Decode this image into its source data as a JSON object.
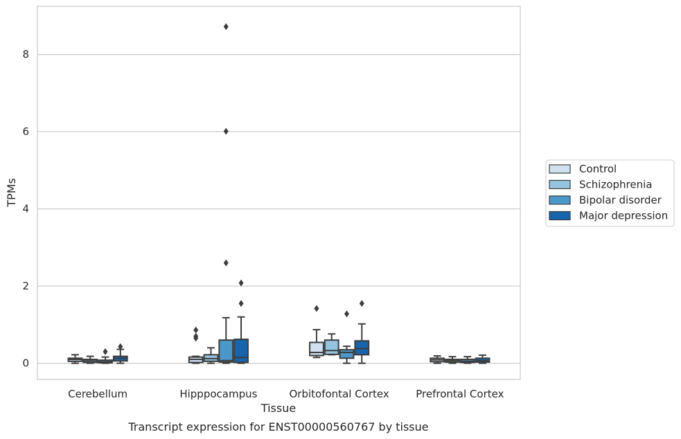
{
  "caption": "Transcript expression for ENST00000560767 by tissue",
  "chart_data": {
    "type": "box",
    "xlabel": "Tissue",
    "ylabel": "TPMs",
    "ylim": [
      -0.42,
      9.25
    ],
    "yticks": [
      0,
      2,
      4,
      6,
      8
    ],
    "grid": "horizontal",
    "legend_position": "right",
    "categories": [
      "Cerebellum",
      "Hipppocampus",
      "Orbitofontal Cortex",
      "Prefrontal Cortex"
    ],
    "series": [
      {
        "name": "Control",
        "color": "#d0e1f2",
        "boxes": [
          {
            "whisker_low": 0.0,
            "q1": 0.05,
            "median": 0.1,
            "q3": 0.13,
            "whisker_high": 0.22,
            "outliers": []
          },
          {
            "whisker_low": 0.0,
            "q1": 0.02,
            "median": 0.1,
            "q3": 0.16,
            "whisker_high": 0.18,
            "outliers": [
              0.65,
              0.7,
              0.86
            ]
          },
          {
            "whisker_low": 0.15,
            "q1": 0.2,
            "median": 0.28,
            "q3": 0.54,
            "whisker_high": 0.87,
            "outliers": [
              1.42
            ]
          },
          {
            "whisker_low": 0.0,
            "q1": 0.04,
            "median": 0.09,
            "q3": 0.13,
            "whisker_high": 0.19,
            "outliers": []
          }
        ]
      },
      {
        "name": "Schizophrenia",
        "color": "#94c4df",
        "boxes": [
          {
            "whisker_low": 0.0,
            "q1": 0.02,
            "median": 0.06,
            "q3": 0.1,
            "whisker_high": 0.18,
            "outliers": []
          },
          {
            "whisker_low": 0.0,
            "q1": 0.05,
            "median": 0.12,
            "q3": 0.22,
            "whisker_high": 0.4,
            "outliers": []
          },
          {
            "whisker_low": 0.22,
            "q1": 0.23,
            "median": 0.33,
            "q3": 0.6,
            "whisker_high": 0.76,
            "outliers": []
          },
          {
            "whisker_low": 0.0,
            "q1": 0.03,
            "median": 0.07,
            "q3": 0.1,
            "whisker_high": 0.17,
            "outliers": []
          }
        ]
      },
      {
        "name": "Bipolar disorder",
        "color": "#4a98c9",
        "boxes": [
          {
            "whisker_low": 0.0,
            "q1": 0.01,
            "median": 0.04,
            "q3": 0.08,
            "whisker_high": 0.16,
            "outliers": [
              0.3
            ]
          },
          {
            "whisker_low": 0.0,
            "q1": 0.03,
            "median": 0.07,
            "q3": 0.6,
            "whisker_high": 1.18,
            "outliers": [
              2.6,
              6.01,
              8.72
            ]
          },
          {
            "whisker_low": 0.0,
            "q1": 0.13,
            "median": 0.28,
            "q3": 0.35,
            "whisker_high": 0.44,
            "outliers": [
              1.28
            ]
          },
          {
            "whisker_low": 0.0,
            "q1": 0.02,
            "median": 0.05,
            "q3": 0.1,
            "whisker_high": 0.17,
            "outliers": []
          }
        ]
      },
      {
        "name": "Major depression",
        "color": "#1764ab",
        "boxes": [
          {
            "whisker_low": 0.0,
            "q1": 0.06,
            "median": 0.13,
            "q3": 0.18,
            "whisker_high": 0.36,
            "outliers": [
              0.43
            ]
          },
          {
            "whisker_low": 0.0,
            "q1": 0.02,
            "median": 0.15,
            "q3": 0.62,
            "whisker_high": 1.2,
            "outliers": [
              1.55,
              2.08
            ]
          },
          {
            "whisker_low": 0.0,
            "q1": 0.22,
            "median": 0.38,
            "q3": 0.58,
            "whisker_high": 1.02,
            "outliers": [
              1.55
            ]
          },
          {
            "whisker_low": 0.0,
            "q1": 0.03,
            "median": 0.07,
            "q3": 0.13,
            "whisker_high": 0.21,
            "outliers": []
          }
        ]
      }
    ]
  }
}
